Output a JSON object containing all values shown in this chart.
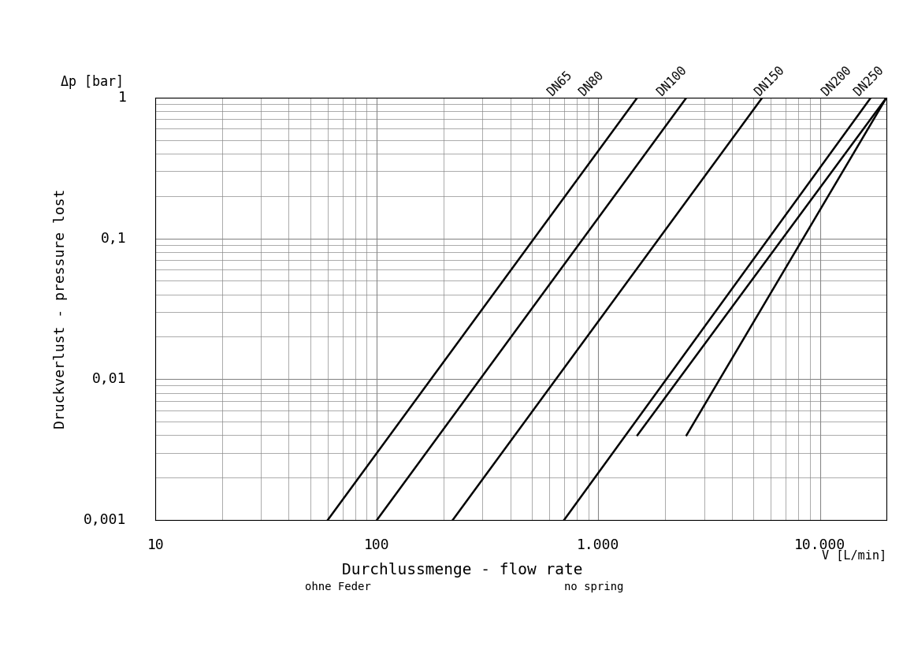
{
  "title": "",
  "ylabel_top": "Δp [bar]",
  "ylabel_main": "Druckverlust - pressure lost",
  "xlabel_main": "Durchlussmenge - flow rate",
  "xlabel_sub1": "ohne Feder",
  "xlabel_sub2": "no spring",
  "xlabel_unit": "V [L/min]",
  "xlim": [
    10,
    20000
  ],
  "ylim": [
    0.001,
    1.0
  ],
  "ytick_labels": [
    "0,001",
    "0,01",
    "0,1",
    "1"
  ],
  "ytick_values": [
    0.001,
    0.01,
    0.1,
    1.0
  ],
  "xtick_labels": [
    "10",
    "100",
    "1.000",
    "10.000"
  ],
  "xtick_values": [
    10,
    100,
    1000,
    10000
  ],
  "lines": [
    {
      "label": "DN65",
      "x": [
        60,
        1500
      ],
      "y": [
        0.001,
        1.0
      ],
      "color": "#000000",
      "linewidth": 1.8
    },
    {
      "label": "DN80",
      "x": [
        100,
        2500
      ],
      "y": [
        0.001,
        1.0
      ],
      "color": "#000000",
      "linewidth": 1.8
    },
    {
      "label": "DN100",
      "x": [
        220,
        5500
      ],
      "y": [
        0.001,
        1.0
      ],
      "color": "#000000",
      "linewidth": 1.8
    },
    {
      "label": "DN150",
      "x": [
        700,
        17000
      ],
      "y": [
        0.001,
        1.0
      ],
      "color": "#000000",
      "linewidth": 1.8
    },
    {
      "label": "DN200",
      "x": [
        1500,
        20000
      ],
      "y": [
        0.004,
        1.0
      ],
      "color": "#000000",
      "linewidth": 1.8
    },
    {
      "label": "DN250",
      "x": [
        2500,
        20000
      ],
      "y": [
        0.004,
        1.0
      ],
      "color": "#000000",
      "linewidth": 1.8
    }
  ],
  "label_rotation": 45,
  "background_color": "#ffffff",
  "grid_color": "#888888",
  "font_family": "monospace"
}
